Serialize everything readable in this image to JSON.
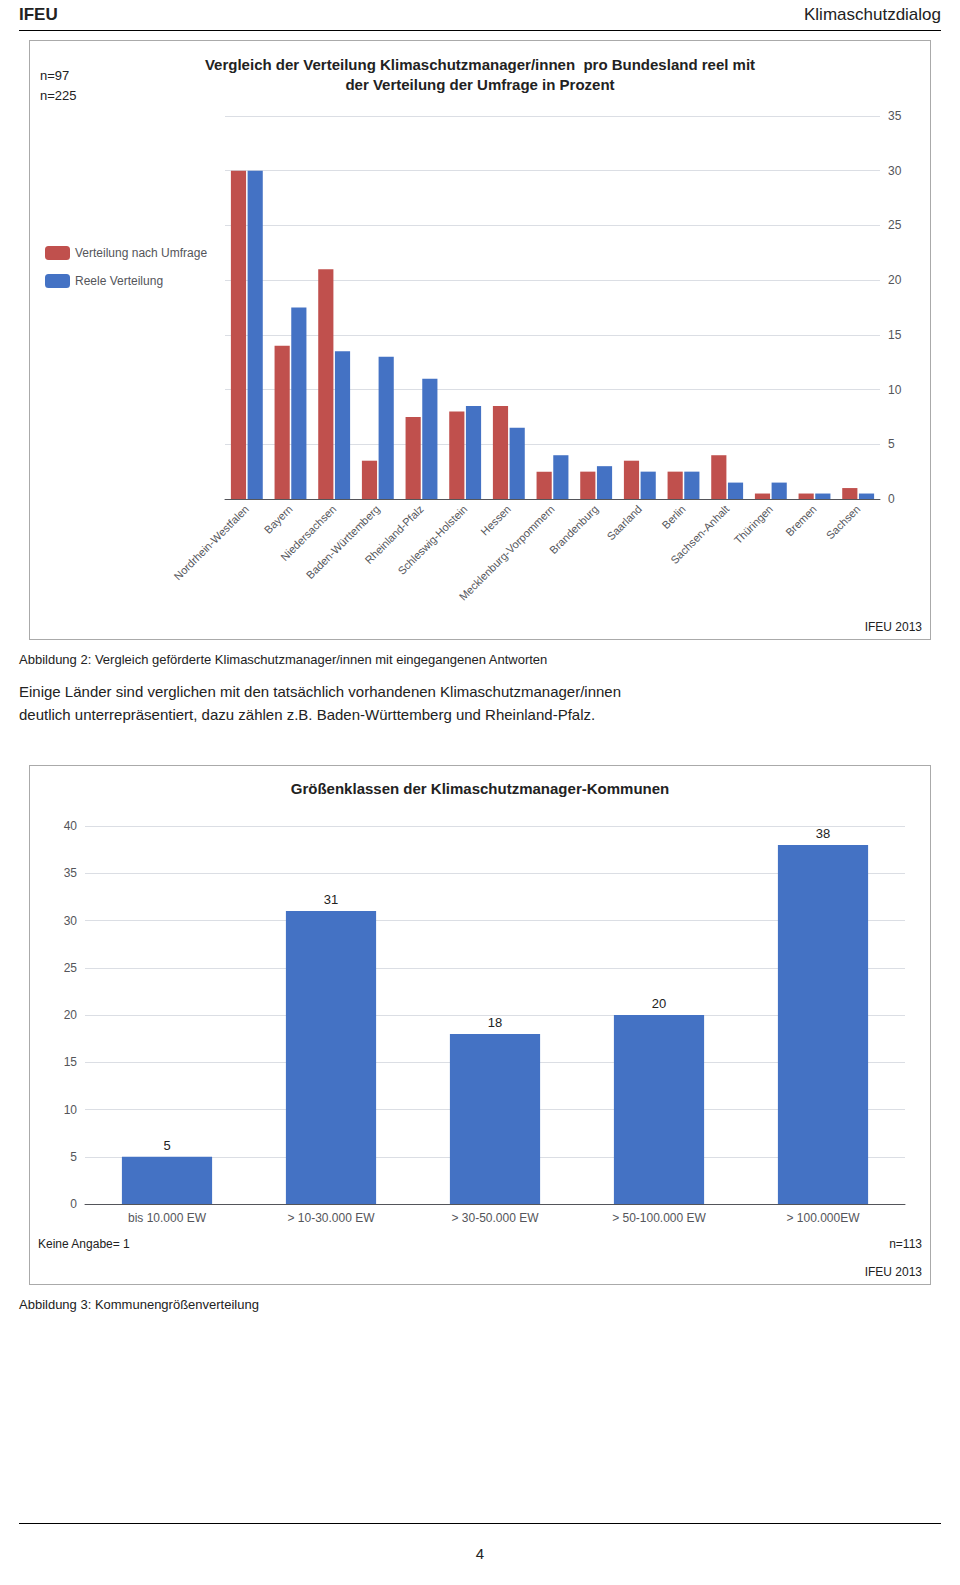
{
  "chart_data": [
    {
      "type": "bar",
      "title": "Vergleich der Verteilung Klimaschutzmanager/innen  pro Bundesland reel mit\nder Verteilung der Umfrage in Prozent",
      "categories": [
        "Nordrhein-Westfalen",
        "Bayern",
        "Niedersachsen",
        "Baden-Württemberg",
        "Rheinland-Pfalz",
        "Schleswig-Holstein",
        "Hessen",
        "Mecklenburg-Vorpommern",
        "Brandenburg",
        "Saarland",
        "Berlin",
        "Sachsen-Anhalt",
        "Thüringen",
        "Bremen",
        "Sachsen"
      ],
      "series": [
        {
          "name": "Verteilung nach Umfrage",
          "color": "#C0504D",
          "values": [
            30.0,
            14.0,
            21.0,
            3.5,
            7.5,
            8.0,
            8.5,
            2.5,
            2.5,
            3.5,
            2.5,
            4.0,
            0.5,
            0.5,
            1.0
          ]
        },
        {
          "name": "Reele Verteilung",
          "color": "#4472C4",
          "values": [
            30.0,
            17.5,
            13.5,
            13.0,
            11.0,
            8.5,
            6.5,
            4.0,
            3.0,
            2.5,
            2.5,
            1.5,
            1.5,
            0.5,
            0.5
          ]
        }
      ],
      "ylim": [
        0,
        35
      ],
      "yticks": [
        0,
        5,
        10,
        15,
        20,
        25,
        30,
        35
      ],
      "grid": true,
      "legend": "left",
      "annotations": [
        "IFEU",
        "Klimaschutzdialog",
        "n=97",
        "n=225",
        "IFEU 2013",
        "Abbildung 2: Vergleich geförderte Klimaschutzmanager/innen mit eingegangenen Antworten",
        "Einige Länder sind verglichen mit den tatsächlich vorhandenen Klimaschutzmanager/innen\ndeutlich unterrepräsentiert, dazu zählen z.B. Baden-Württemberg und Rheinland-Pfalz."
      ]
    },
    {
      "type": "bar",
      "title": "Größenklassen der Klimaschutzmanager-Kommunen",
      "categories": [
        "bis 10.000 EW",
        "> 10-30.000 EW",
        "> 30-50.000 EW",
        "> 50-100.000 EW",
        "> 100.000EW"
      ],
      "values": [
        5,
        31,
        18,
        20,
        38
      ],
      "color": "#4472C4",
      "ylim": [
        0,
        40
      ],
      "yticks": [
        0,
        5,
        10,
        15,
        20,
        25,
        30,
        35,
        40
      ],
      "grid": true,
      "data_labels": true,
      "annotations": [
        "n=113",
        "Keine Angabe= 1",
        "IFEU 2013",
        "Abbildung 3: Kommunengrößenverteilung",
        "4"
      ]
    }
  ]
}
